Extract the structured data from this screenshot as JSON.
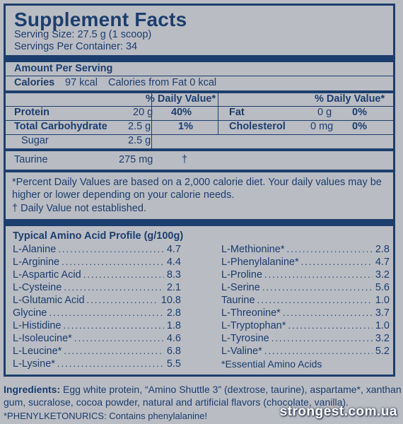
{
  "header": {
    "title": "Supplement Facts",
    "serving_size": "Serving Size: 27.5 g (1 scoop)",
    "servings_per_container": "Servings Per Container: 34"
  },
  "amount_per_serving": "Amount Per Serving",
  "calories": {
    "label": "Calories",
    "value": "97 kcal",
    "from_fat": "Calories from Fat 0 kcal"
  },
  "dv_header": "% Daily Value*",
  "nutrients_left": [
    {
      "name": "Protein",
      "amount": "20 g",
      "dv": "40%"
    },
    {
      "name": "Total Carbohydrate",
      "amount": "2.5 g",
      "dv": "1%"
    },
    {
      "name": "Sugar",
      "amount": "2.5 g",
      "dv": ""
    }
  ],
  "nutrients_right": [
    {
      "name": "Fat",
      "amount": "0 g",
      "dv": "0%"
    },
    {
      "name": "Cholesterol",
      "amount": "0 mg",
      "dv": "0%"
    }
  ],
  "taurine": {
    "name": "Taurine",
    "amount": "275 mg",
    "dv": "†"
  },
  "footnotes": {
    "line1": "*Percent Daily Values are based on a 2,000 calorie diet. Your daily values may be",
    "line2": "higher or lower depending on your calorie needs.",
    "line3": "† Daily Value not established."
  },
  "amino": {
    "title": "Typical Amino Acid Profile (g/100g)",
    "left": [
      {
        "name": "L-Alanine",
        "value": "4.7"
      },
      {
        "name": "L-Arginine",
        "value": "4.4"
      },
      {
        "name": "L-Aspartic Acid",
        "value": "8.3"
      },
      {
        "name": "L-Cysteine",
        "value": "2.1"
      },
      {
        "name": "L-Glutamic Acid",
        "value": "10.8"
      },
      {
        "name": "Glycine",
        "value": "2.8"
      },
      {
        "name": "L-Histidine",
        "value": "1.8"
      },
      {
        "name": "L-Isoleucine*",
        "value": "4.6"
      },
      {
        "name": "L-Leucine*",
        "value": "6.8"
      },
      {
        "name": "L-Lysine*",
        "value": "5.5"
      }
    ],
    "right": [
      {
        "name": "L-Methionine*",
        "value": "2.8"
      },
      {
        "name": "L-Phenylalanine*",
        "value": "4.7"
      },
      {
        "name": "L-Proline",
        "value": "3.2"
      },
      {
        "name": "L-Serine",
        "value": "5.6"
      },
      {
        "name": "Taurine",
        "value": "1.0"
      },
      {
        "name": "L-Threonine*",
        "value": "3.7"
      },
      {
        "name": "L-Tryptophan*",
        "value": "1.0"
      },
      {
        "name": "L-Tyrosine",
        "value": "3.2"
      },
      {
        "name": "L-Valine*",
        "value": "5.2"
      }
    ],
    "essential_note": "*Essential Amino Acids"
  },
  "ingredients": {
    "label": "Ingredients:",
    "text1": " Egg white protein, “Amino Shuttle 3” (dextrose, taurine), aspartame*, xanthan",
    "text2": "gum, sucralose, cocoa powder, natural and artificial flavors (chocolate, vanilla)."
  },
  "pku": "*PHENYLKETONURICS: Contains phenylalanine!",
  "watermark": "strongest.com.ua",
  "colors": {
    "ink": "#1c3e6e",
    "background": "#b9bcc3"
  }
}
